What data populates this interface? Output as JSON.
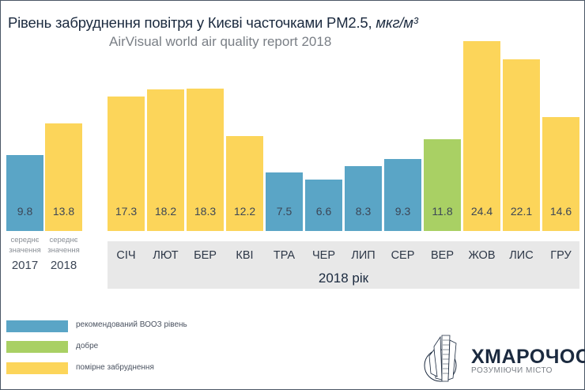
{
  "chart_data": {
    "type": "bar",
    "title": "Рівень забруднення повітря у Києві часточками PM2.5,",
    "title_unit": "мкг/м³",
    "subtitle": "AirVisual world air quality report 2018",
    "averages": [
      {
        "label": "середнє значення",
        "year": "2017",
        "value": 9.8,
        "category": "who"
      },
      {
        "label": "середнє значення",
        "year": "2018",
        "value": 13.8,
        "category": "moderate"
      }
    ],
    "categories": [
      "СІЧ",
      "ЛЮТ",
      "БЕР",
      "КВІ",
      "ТРА",
      "ЧЕР",
      "ЛИП",
      "СЕР",
      "ВЕР",
      "ЖОВ",
      "ЛИС",
      "ГРУ"
    ],
    "values": [
      17.3,
      18.2,
      18.3,
      12.2,
      7.5,
      6.6,
      8.3,
      9.3,
      11.8,
      24.4,
      22.1,
      14.6
    ],
    "bar_categories": [
      "moderate",
      "moderate",
      "moderate",
      "moderate",
      "who",
      "who",
      "who",
      "who",
      "good",
      "moderate",
      "moderate",
      "moderate"
    ],
    "xlabel": "2018 рік",
    "ylabel": "",
    "ylim": [
      0,
      24.4
    ],
    "grid": false,
    "data_labels": true,
    "legend": {
      "placement": "bottom-left",
      "entries": [
        {
          "key": "who",
          "label": "рекомендований ВООЗ рівень",
          "color": "#5aa5c6"
        },
        {
          "key": "good",
          "label": "добре",
          "color": "#a9d064"
        },
        {
          "key": "moderate",
          "label": "помірне забруднення",
          "color": "#fcd55a"
        }
      ]
    }
  },
  "logo": {
    "name": "ХМАРОЧОС",
    "tagline": "РОЗУМІЮЧИ МІСТО"
  }
}
